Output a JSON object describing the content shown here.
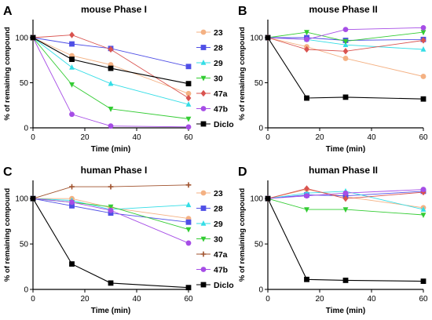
{
  "colors": {
    "23": "#f4b183",
    "28": "#4f4fe6",
    "29": "#33dde6",
    "30": "#33cc33",
    "47a": "#d9534f",
    "47b": "#a64de6",
    "Diclo": "#000000",
    "human_47a": "#a0522d"
  },
  "chart_data": [
    {
      "id": "A",
      "panel_letter": "A",
      "type": "line",
      "title": "mouse Phase I",
      "xlabel": "Time (min)",
      "ylabel": "% of remaining compound",
      "x": [
        0,
        15,
        30,
        60
      ],
      "xlim": [
        0,
        60
      ],
      "ylim": [
        0,
        120
      ],
      "xticks": [
        "0",
        "20",
        "40",
        "60"
      ],
      "yticks": [
        "0",
        "50",
        "100"
      ],
      "legend_placement": "right",
      "series": [
        {
          "name": "23",
          "values": [
            100,
            80,
            70,
            38
          ],
          "marker": "circle"
        },
        {
          "name": "28",
          "values": [
            100,
            93,
            88,
            68
          ],
          "marker": "square"
        },
        {
          "name": "29",
          "values": [
            100,
            67,
            49,
            26
          ],
          "marker": "triangle-up"
        },
        {
          "name": "30",
          "values": [
            100,
            48,
            21,
            10
          ],
          "marker": "triangle-down"
        },
        {
          "name": "47a",
          "values": [
            100,
            103,
            87,
            33
          ],
          "marker": "diamond"
        },
        {
          "name": "47b",
          "values": [
            100,
            15,
            2,
            1
          ],
          "marker": "circle"
        },
        {
          "name": "Diclo",
          "values": [
            100,
            76,
            66,
            49
          ],
          "marker": "square"
        }
      ]
    },
    {
      "id": "B",
      "panel_letter": "B",
      "type": "line",
      "title": "mouse Phase II",
      "xlabel": "Time (min)",
      "ylabel": "% of remaining compound",
      "x": [
        0,
        15,
        30,
        60
      ],
      "xlim": [
        0,
        60
      ],
      "ylim": [
        0,
        120
      ],
      "xticks": [
        "0",
        "20",
        "40",
        "60"
      ],
      "yticks": [
        "0",
        "50",
        "100"
      ],
      "series": [
        {
          "name": "23",
          "values": [
            100,
            90,
            77,
            57
          ],
          "marker": "circle"
        },
        {
          "name": "28",
          "values": [
            100,
            100,
            97,
            98
          ],
          "marker": "square"
        },
        {
          "name": "29",
          "values": [
            100,
            98,
            92,
            87
          ],
          "marker": "triangle-up"
        },
        {
          "name": "30",
          "values": [
            100,
            106,
            96,
            106
          ],
          "marker": "triangle-down"
        },
        {
          "name": "47a",
          "values": [
            100,
            87,
            85,
            97
          ],
          "marker": "diamond"
        },
        {
          "name": "47b",
          "values": [
            100,
            98,
            109,
            111
          ],
          "marker": "circle"
        },
        {
          "name": "Diclo",
          "values": [
            100,
            33,
            34,
            32
          ],
          "marker": "square"
        }
      ]
    },
    {
      "id": "C",
      "panel_letter": "C",
      "type": "line",
      "title": "human Phase I",
      "xlabel": "Time (min)",
      "ylabel": "% of remaining compound",
      "x": [
        0,
        15,
        30,
        60
      ],
      "xlim": [
        0,
        60
      ],
      "ylim": [
        0,
        120
      ],
      "xticks": [
        "0",
        "20",
        "40",
        "60"
      ],
      "yticks": [
        "0",
        "50",
        "100"
      ],
      "legend_placement": "right",
      "series": [
        {
          "name": "23",
          "values": [
            100,
            100,
            90,
            78
          ],
          "marker": "circle"
        },
        {
          "name": "28",
          "values": [
            100,
            92,
            84,
            74
          ],
          "marker": "square"
        },
        {
          "name": "29",
          "values": [
            100,
            98,
            88,
            93
          ],
          "marker": "triangle-up"
        },
        {
          "name": "30",
          "values": [
            100,
            96,
            91,
            66
          ],
          "marker": "triangle-down"
        },
        {
          "name": "47a",
          "values": [
            100,
            113,
            113,
            115
          ],
          "marker": "plus"
        },
        {
          "name": "47b",
          "values": [
            100,
            96,
            87,
            51
          ],
          "marker": "circle"
        },
        {
          "name": "Diclo",
          "values": [
            100,
            28,
            7,
            2
          ],
          "marker": "square"
        }
      ]
    },
    {
      "id": "D",
      "panel_letter": "D",
      "type": "line",
      "title": "human Phase II",
      "xlabel": "Time (min)",
      "ylabel": "% of remaining compound",
      "x": [
        0,
        15,
        30,
        60
      ],
      "xlim": [
        0,
        60
      ],
      "ylim": [
        0,
        120
      ],
      "xticks": [
        "0",
        "20",
        "40",
        "60"
      ],
      "yticks": [
        "0",
        "50",
        "100"
      ],
      "series": [
        {
          "name": "23",
          "values": [
            100,
            110,
            102,
            90
          ],
          "marker": "circle"
        },
        {
          "name": "28",
          "values": [
            100,
            104,
            103,
            108
          ],
          "marker": "square"
        },
        {
          "name": "29",
          "values": [
            100,
            106,
            108,
            88
          ],
          "marker": "triangle-up"
        },
        {
          "name": "30",
          "values": [
            100,
            88,
            88,
            82
          ],
          "marker": "triangle-down"
        },
        {
          "name": "47a",
          "values": [
            100,
            111,
            100,
            107
          ],
          "marker": "diamond"
        },
        {
          "name": "47b",
          "values": [
            100,
            103,
            106,
            110
          ],
          "marker": "circle"
        },
        {
          "name": "Diclo",
          "values": [
            100,
            11,
            10,
            9
          ],
          "marker": "square"
        }
      ]
    }
  ]
}
